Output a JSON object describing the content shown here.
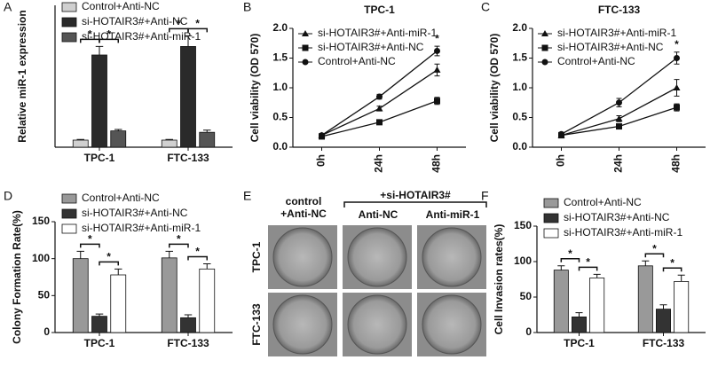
{
  "chart_data": [
    {
      "type": "bar",
      "label": "A",
      "ylabel": "Relative miR-1 expression",
      "categories": [
        "TPC-1",
        "FTC-133"
      ],
      "ylim": [
        0,
        20
      ],
      "series": [
        {
          "name": "Control+Anti-NC",
          "color": "#d0d0d0",
          "values": [
            1.0,
            1.0
          ],
          "errors": [
            0.1,
            0.1
          ]
        },
        {
          "name": "si-HOTAIR3#+Anti-NC",
          "color": "#2a2a2a",
          "values": [
            13.0,
            14.2
          ],
          "errors": [
            1.2,
            1.5
          ]
        },
        {
          "name": "si-HOTAIR3#+Anti-miR-1",
          "color": "#555555",
          "values": [
            2.3,
            2.1
          ],
          "errors": [
            0.2,
            0.3
          ]
        }
      ],
      "annotations": [
        "*",
        "*",
        "*",
        "*"
      ]
    },
    {
      "type": "line",
      "label": "B",
      "title": "TPC-1",
      "ylabel": "Cell viability (OD 570)",
      "categories": [
        "0h",
        "24h",
        "48h"
      ],
      "ylim": [
        0,
        2
      ],
      "yticks": [
        {
          "value": 0,
          "label": "0.0"
        },
        0.5,
        {
          "value": 1,
          "label": "1.0"
        },
        1.5,
        {
          "value": 2,
          "label": "2.0"
        }
      ],
      "series": [
        {
          "name": "si-HOTAIR3#+Anti-miR-1",
          "color": "#111111",
          "marker": "triangle",
          "values": [
            0.2,
            0.65,
            1.3
          ],
          "errors": [
            0.03,
            0.04,
            0.1
          ]
        },
        {
          "name": "si-HOTAIR3#+Anti-NC",
          "color": "#111111",
          "marker": "square",
          "values": [
            0.18,
            0.42,
            0.78
          ],
          "errors": [
            0.03,
            0.04,
            0.06
          ]
        },
        {
          "name": "Control+Anti-NC",
          "color": "#111111",
          "marker": "circle",
          "values": [
            0.2,
            0.85,
            1.62
          ],
          "errors": [
            0.03,
            0.04,
            0.08
          ]
        }
      ],
      "annotations": [
        "*"
      ]
    },
    {
      "type": "line",
      "label": "C",
      "title": "FTC-133",
      "ylabel": "Cell viability (OD 570)",
      "categories": [
        "0h",
        "24h",
        "48h"
      ],
      "ylim": [
        0,
        2
      ],
      "yticks": [
        {
          "value": 0,
          "label": "0.0"
        },
        0.5,
        {
          "value": 1,
          "label": "1.0"
        },
        1.5,
        {
          "value": 2,
          "label": "2.0"
        }
      ],
      "series": [
        {
          "name": "si-HOTAIR3#+Anti-miR-1",
          "color": "#111111",
          "marker": "triangle",
          "values": [
            0.2,
            0.48,
            1.0
          ],
          "errors": [
            0.03,
            0.05,
            0.14
          ]
        },
        {
          "name": "si-HOTAIR3#+Anti-NC",
          "color": "#111111",
          "marker": "square",
          "values": [
            0.2,
            0.35,
            0.67
          ],
          "errors": [
            0.03,
            0.04,
            0.06
          ]
        },
        {
          "name": "Control+Anti-NC",
          "color": "#111111",
          "marker": "circle",
          "values": [
            0.22,
            0.75,
            1.5
          ],
          "errors": [
            0.03,
            0.07,
            0.1
          ]
        }
      ],
      "annotations": [
        "*"
      ]
    },
    {
      "type": "bar",
      "label": "D",
      "ylabel": "Colony Formation Rate(%)",
      "categories": [
        "TPC-1",
        "FTC-133"
      ],
      "ylim": [
        0,
        150
      ],
      "yticks": [
        0,
        50,
        100,
        150
      ],
      "series": [
        {
          "name": "Control+Anti-NC",
          "color": "#999999",
          "values": [
            100,
            101
          ],
          "errors": [
            10,
            9
          ]
        },
        {
          "name": "si-HOTAIR3#+Anti-NC",
          "color": "#333333",
          "values": [
            22,
            20
          ],
          "errors": [
            3,
            4
          ]
        },
        {
          "name": "si-HOTAIR3#+Anti-miR-1",
          "color": "#ffffff",
          "values": [
            78,
            86
          ],
          "errors": [
            8,
            7
          ]
        }
      ],
      "annotations": [
        "*",
        "*",
        "*",
        "*"
      ]
    },
    {
      "type": "bar",
      "label": "F",
      "ylabel": "Cell Invasion rates(%)",
      "categories": [
        "TPC-1",
        "FTC-133"
      ],
      "ylim": [
        0,
        150
      ],
      "yticks": [
        0,
        50,
        100,
        150
      ],
      "series": [
        {
          "name": "Control+Anti-NC",
          "color": "#999999",
          "values": [
            88,
            94
          ],
          "errors": [
            6,
            7
          ]
        },
        {
          "name": "si-HOTAIR3#+Anti-NC",
          "color": "#333333",
          "values": [
            22,
            33
          ],
          "errors": [
            6,
            6
          ]
        },
        {
          "name": "si-HOTAIR3#+Anti-miR-1",
          "color": "#ffffff",
          "values": [
            77,
            72
          ],
          "errors": [
            5,
            9
          ]
        }
      ],
      "annotations": [
        "*",
        "*",
        "*",
        "*"
      ]
    }
  ],
  "image_panel": {
    "label": "E",
    "group": "+si-HOTAIR3#",
    "columns": [
      [
        "control",
        "+Anti-NC"
      ],
      [
        "Anti-NC"
      ],
      [
        "Anti-miR-1"
      ]
    ],
    "rows": [
      "TPC-1",
      "FTC-133"
    ]
  }
}
